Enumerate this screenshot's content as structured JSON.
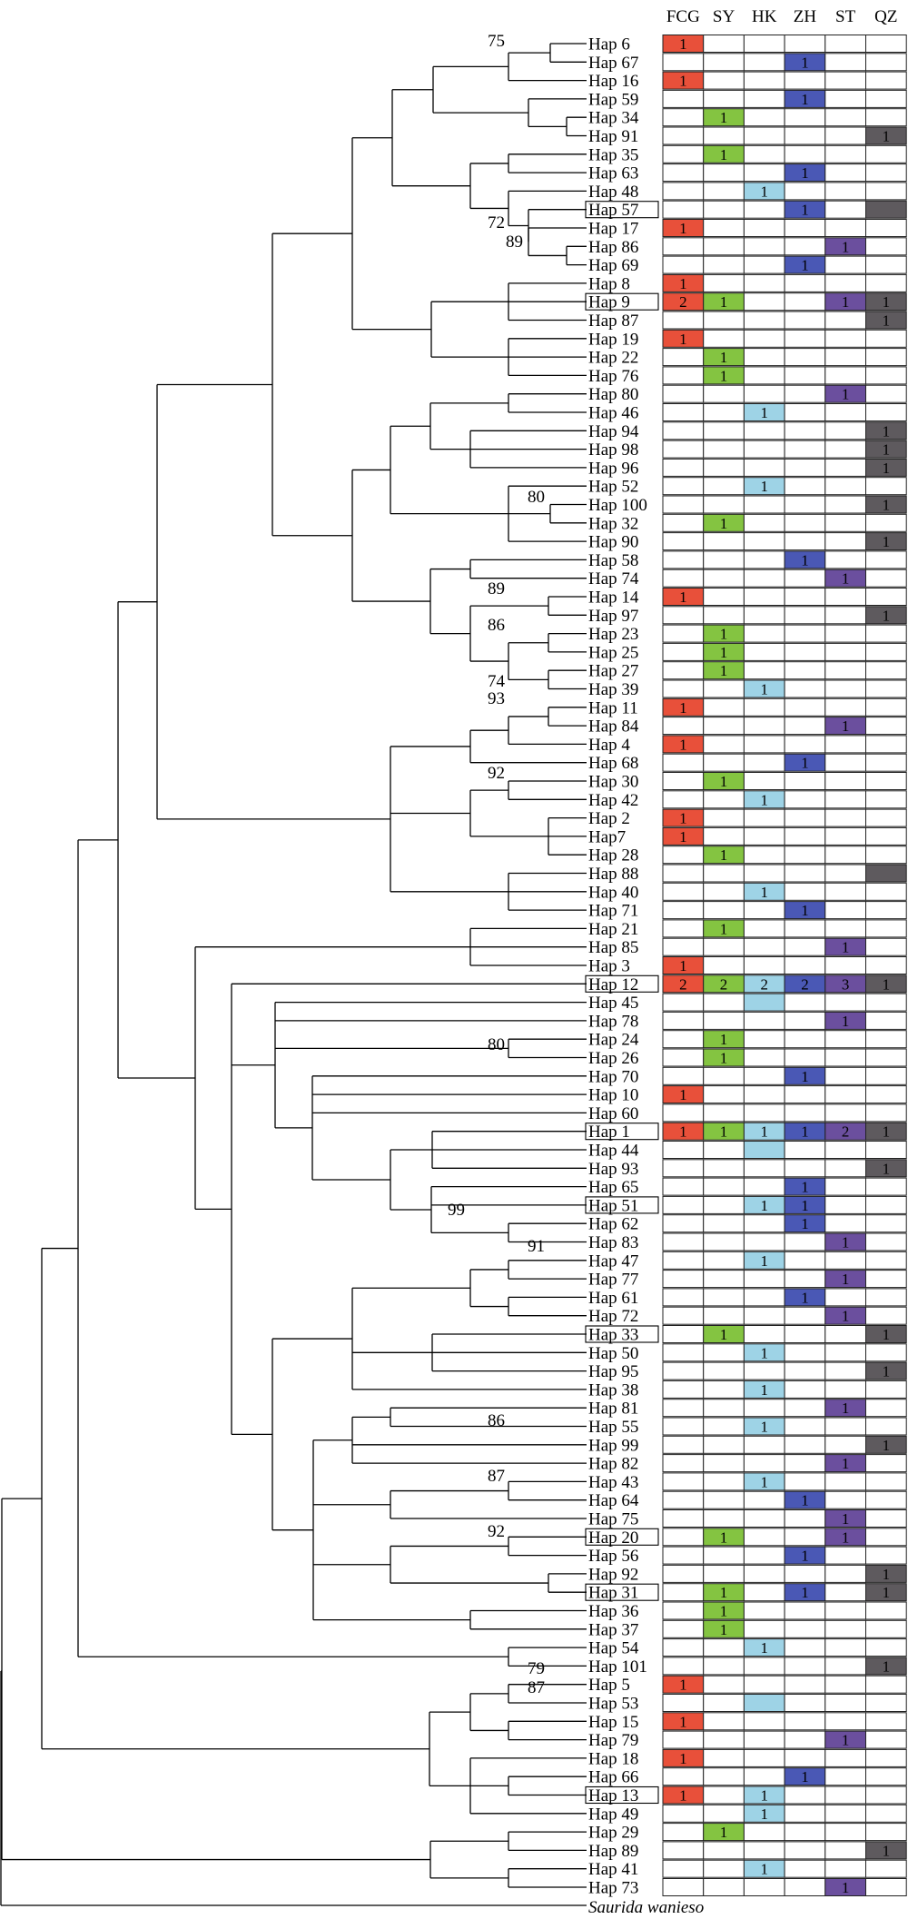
{
  "columns": [
    "FCG",
    "SY",
    "HK",
    "ZH",
    "ST",
    "QZ"
  ],
  "colors": {
    "FCG": "#e8503a",
    "SY": "#84c441",
    "HK": "#9ed3e6",
    "ZH": "#4a58b5",
    "ST": "#6b4f9e",
    "QZ": "#5e5a5e"
  },
  "outgroup": "Saurida wanieso",
  "haplotypes": [
    {
      "label": "Hap 6",
      "cells": {
        "FCG": "1"
      }
    },
    {
      "label": "Hap 67",
      "cells": {
        "ZH": "1"
      }
    },
    {
      "label": "Hap 16",
      "cells": {
        "FCG": "1"
      }
    },
    {
      "label": "Hap 59",
      "cells": {
        "ZH": "1"
      }
    },
    {
      "label": "Hap 34",
      "cells": {
        "SY": "1"
      }
    },
    {
      "label": "Hap 91",
      "cells": {
        "QZ": "1"
      }
    },
    {
      "label": "Hap 35",
      "cells": {
        "SY": "1"
      }
    },
    {
      "label": "Hap 63",
      "cells": {
        "ZH": "1"
      }
    },
    {
      "label": "Hap 48",
      "cells": {
        "HK": "1"
      }
    },
    {
      "label": "Hap 57",
      "boxed": true,
      "cells": {
        "ZH": "1",
        "QZ": ""
      }
    },
    {
      "label": "Hap 17",
      "cells": {
        "FCG": "1"
      }
    },
    {
      "label": "Hap 86",
      "cells": {
        "ST": "1"
      }
    },
    {
      "label": "Hap 69",
      "cells": {
        "ZH": "1"
      }
    },
    {
      "label": "Hap 8",
      "cells": {
        "FCG": "1"
      }
    },
    {
      "label": "Hap 9",
      "boxed": true,
      "cells": {
        "FCG": "2",
        "SY": "1",
        "ST": "1",
        "QZ": "1"
      }
    },
    {
      "label": "Hap 87",
      "cells": {
        "QZ": "1"
      }
    },
    {
      "label": "Hap 19",
      "cells": {
        "FCG": "1"
      }
    },
    {
      "label": "Hap 22",
      "cells": {
        "SY": "1"
      }
    },
    {
      "label": "Hap 76",
      "cells": {
        "SY": "1"
      }
    },
    {
      "label": "Hap 80",
      "cells": {
        "ST": "1"
      }
    },
    {
      "label": "Hap 46",
      "cells": {
        "HK": "1"
      }
    },
    {
      "label": "Hap 94",
      "cells": {
        "QZ": "1"
      }
    },
    {
      "label": "Hap 98",
      "cells": {
        "QZ": "1"
      }
    },
    {
      "label": "Hap 96",
      "cells": {
        "QZ": "1"
      }
    },
    {
      "label": "Hap 52",
      "cells": {
        "HK": "1"
      }
    },
    {
      "label": "Hap 100",
      "cells": {
        "QZ": "1"
      }
    },
    {
      "label": "Hap 32",
      "cells": {
        "SY": "1"
      }
    },
    {
      "label": "Hap 90",
      "cells": {
        "QZ": "1"
      }
    },
    {
      "label": "Hap 58",
      "cells": {
        "ZH": "1"
      }
    },
    {
      "label": "Hap 74",
      "cells": {
        "ST": "1"
      }
    },
    {
      "label": "Hap 14",
      "cells": {
        "FCG": "1"
      }
    },
    {
      "label": "Hap 97",
      "cells": {
        "QZ": "1"
      }
    },
    {
      "label": "Hap 23",
      "cells": {
        "SY": "1"
      }
    },
    {
      "label": "Hap 25",
      "cells": {
        "SY": "1"
      }
    },
    {
      "label": "Hap 27",
      "cells": {
        "SY": "1"
      }
    },
    {
      "label": "Hap 39",
      "cells": {
        "HK": "1"
      }
    },
    {
      "label": "Hap 11",
      "cells": {
        "FCG": "1"
      }
    },
    {
      "label": "Hap 84",
      "cells": {
        "ST": "1"
      }
    },
    {
      "label": "Hap 4",
      "cells": {
        "FCG": "1"
      }
    },
    {
      "label": "Hap 68",
      "cells": {
        "ZH": "1"
      }
    },
    {
      "label": "Hap 30",
      "cells": {
        "SY": "1"
      }
    },
    {
      "label": "Hap 42",
      "cells": {
        "HK": "1"
      }
    },
    {
      "label": "Hap 2",
      "cells": {
        "FCG": "1"
      }
    },
    {
      "label": "Hap7",
      "cells": {
        "FCG": "1"
      }
    },
    {
      "label": "Hap 28",
      "cells": {
        "SY": "1"
      }
    },
    {
      "label": "Hap 88",
      "cells": {
        "QZ": ""
      }
    },
    {
      "label": "Hap 40",
      "cells": {
        "HK": "1"
      }
    },
    {
      "label": "Hap 71",
      "cells": {
        "ZH": "1"
      }
    },
    {
      "label": "Hap 21",
      "cells": {
        "SY": "1"
      }
    },
    {
      "label": "Hap 85",
      "cells": {
        "ST": "1"
      }
    },
    {
      "label": "Hap 3",
      "cells": {
        "FCG": "1"
      }
    },
    {
      "label": "Hap 12",
      "boxed": true,
      "cells": {
        "FCG": "2",
        "SY": "2",
        "HK": "2",
        "ZH": "2",
        "ST": "3",
        "QZ": "1"
      }
    },
    {
      "label": "Hap 45",
      "cells": {
        "HK": ""
      }
    },
    {
      "label": "Hap 78",
      "cells": {
        "ST": "1"
      }
    },
    {
      "label": "Hap 24",
      "cells": {
        "SY": "1"
      }
    },
    {
      "label": "Hap 26",
      "cells": {
        "SY": "1"
      }
    },
    {
      "label": "Hap 70",
      "cells": {
        "ZH": "1"
      }
    },
    {
      "label": "Hap 10",
      "cells": {
        "FCG": "1"
      }
    },
    {
      "label": "Hap 60",
      "cells": {}
    },
    {
      "label": "Hap 1",
      "boxed": true,
      "cells": {
        "FCG": "1",
        "SY": "1",
        "HK": "1",
        "ZH": "1",
        "ST": "2",
        "QZ": "1"
      }
    },
    {
      "label": "Hap 44",
      "cells": {
        "HK": ""
      }
    },
    {
      "label": "Hap 93",
      "cells": {
        "QZ": "1"
      }
    },
    {
      "label": "Hap 65",
      "cells": {
        "ZH": "1"
      }
    },
    {
      "label": "Hap 51",
      "boxed": true,
      "cells": {
        "HK": "1",
        "ZH": "1"
      }
    },
    {
      "label": "Hap 62",
      "cells": {
        "ZH": "1"
      }
    },
    {
      "label": "Hap 83",
      "cells": {
        "ST": "1"
      }
    },
    {
      "label": "Hap 47",
      "cells": {
        "HK": "1"
      }
    },
    {
      "label": "Hap 77",
      "cells": {
        "ST": "1"
      }
    },
    {
      "label": "Hap 61",
      "cells": {
        "ZH": "1"
      }
    },
    {
      "label": "Hap 72",
      "cells": {
        "ST": "1"
      }
    },
    {
      "label": "Hap 33",
      "boxed": true,
      "cells": {
        "SY": "1",
        "QZ": "1"
      }
    },
    {
      "label": "Hap 50",
      "cells": {
        "HK": "1"
      }
    },
    {
      "label": "Hap 95",
      "cells": {
        "QZ": "1"
      }
    },
    {
      "label": "Hap 38",
      "cells": {
        "HK": "1"
      }
    },
    {
      "label": "Hap 81",
      "cells": {
        "ST": "1"
      }
    },
    {
      "label": "Hap 55",
      "cells": {
        "HK": "1"
      }
    },
    {
      "label": "Hap 99",
      "cells": {
        "QZ": "1"
      }
    },
    {
      "label": "Hap 82",
      "cells": {
        "ST": "1"
      }
    },
    {
      "label": "Hap 43",
      "cells": {
        "HK": "1"
      }
    },
    {
      "label": "Hap 64",
      "cells": {
        "ZH": "1"
      }
    },
    {
      "label": "Hap 75",
      "cells": {
        "ST": "1"
      }
    },
    {
      "label": "Hap 20",
      "boxed": true,
      "cells": {
        "SY": "1",
        "ST": "1"
      }
    },
    {
      "label": "Hap 56",
      "cells": {
        "ZH": "1"
      }
    },
    {
      "label": "Hap 92",
      "cells": {
        "QZ": "1"
      }
    },
    {
      "label": "Hap 31",
      "boxed": true,
      "cells": {
        "SY": "1",
        "ZH": "1",
        "QZ": "1"
      }
    },
    {
      "label": "Hap 36",
      "cells": {
        "SY": "1"
      }
    },
    {
      "label": "Hap 37",
      "cells": {
        "SY": "1"
      }
    },
    {
      "label": "Hap 54",
      "cells": {
        "HK": "1"
      }
    },
    {
      "label": "Hap 101",
      "cells": {
        "QZ": "1"
      }
    },
    {
      "label": "Hap 5",
      "cells": {
        "FCG": "1"
      }
    },
    {
      "label": "Hap 53",
      "cells": {
        "HK": ""
      }
    },
    {
      "label": "Hap 15",
      "cells": {
        "FCG": "1"
      }
    },
    {
      "label": "Hap 79",
      "cells": {
        "ST": "1"
      }
    },
    {
      "label": "Hap 18",
      "cells": {
        "FCG": "1"
      }
    },
    {
      "label": "Hap 66",
      "cells": {
        "ZH": "1"
      }
    },
    {
      "label": "Hap 13",
      "boxed": true,
      "cells": {
        "FCG": "1",
        "HK": "1"
      }
    },
    {
      "label": "Hap 49",
      "cells": {
        "HK": "1"
      }
    },
    {
      "label": "Hap 29",
      "cells": {
        "SY": "1"
      }
    },
    {
      "label": "Hap 89",
      "cells": {
        "QZ": "1"
      }
    },
    {
      "label": "Hap 41",
      "cells": {
        "HK": "1"
      }
    },
    {
      "label": "Hap 73",
      "cells": {
        "ST": "1"
      }
    }
  ],
  "bootstrap": [
    {
      "value": "75",
      "node": "hap6-hap67"
    },
    {
      "value": "72",
      "node": "hap17-clade"
    },
    {
      "value": "89",
      "node": "hap17-hap86"
    },
    {
      "value": "80",
      "node": "hap52-hap100"
    },
    {
      "value": "89",
      "node": "hap14-hap97"
    },
    {
      "value": "86",
      "node": "hap23-hap25"
    },
    {
      "value": "74",
      "node": "hap27-hap39"
    },
    {
      "value": "93",
      "node": "hap11-hap84"
    },
    {
      "value": "92",
      "node": "hap30-hap42"
    },
    {
      "value": "80",
      "node": "hap24-hap26"
    },
    {
      "value": "99",
      "node": "hap65-hap83"
    },
    {
      "value": "91",
      "node": "hap62-hap83"
    },
    {
      "value": "86",
      "node": "hap55-hap99"
    },
    {
      "value": "87",
      "node": "hap43-hap64"
    },
    {
      "value": "92",
      "node": "hap20-hap56"
    },
    {
      "value": "79",
      "node": "hap54-hap101"
    },
    {
      "value": "87",
      "node": "hap5-hap53"
    }
  ]
}
